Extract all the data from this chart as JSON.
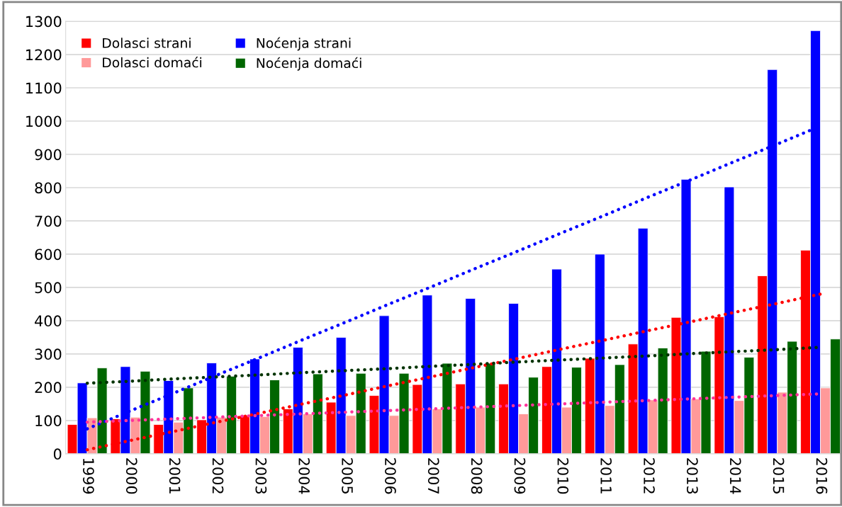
{
  "chart_data": {
    "type": "bar",
    "categories": [
      "1999",
      "2000",
      "2001",
      "2002",
      "2003",
      "2004",
      "2005",
      "2006",
      "2007",
      "2008",
      "2009",
      "2010",
      "2011",
      "2012",
      "2013",
      "2014",
      "2015",
      "2016"
    ],
    "series": [
      {
        "name": "Dolasci strani",
        "color": "#ff0000",
        "values": [
          88,
          105,
          88,
          102,
          115,
          135,
          155,
          175,
          208,
          210,
          210,
          262,
          287,
          330,
          410,
          412,
          535,
          612
        ]
      },
      {
        "name": "Noćenja strani",
        "color": "#0000ff",
        "values": [
          213,
          262,
          220,
          273,
          285,
          320,
          350,
          415,
          477,
          467,
          452,
          555,
          600,
          678,
          825,
          802,
          1155,
          1272
        ]
      },
      {
        "name": "Dolasci domaći",
        "color": "#ff9999",
        "values": [
          108,
          110,
          95,
          110,
          112,
          120,
          115,
          115,
          135,
          140,
          120,
          140,
          145,
          162,
          165,
          160,
          185,
          198
        ]
      },
      {
        "name": "Noćenja domaći",
        "color": "#006600",
        "values": [
          258,
          248,
          198,
          233,
          222,
          240,
          242,
          242,
          272,
          272,
          230,
          260,
          268,
          318,
          308,
          290,
          338,
          345
        ]
      },
      {
        "type": "line",
        "color": "#ff0000",
        "values": [
          12,
          40,
          67,
          95,
          122,
          150,
          177,
          205,
          232,
          260,
          287,
          315,
          342,
          370,
          397,
          425,
          452,
          480
        ],
        "line_style": "dotted"
      },
      {
        "type": "line",
        "color": "#0000ff",
        "values": [
          75,
          129,
          182,
          236,
          289,
          343,
          396,
          450,
          503,
          557,
          610,
          664,
          717,
          771,
          824,
          878,
          931,
          985
        ],
        "line_style": "dotted"
      },
      {
        "type": "line",
        "color": "#ff3399",
        "values": [
          95,
          100,
          105,
          110,
          115,
          120,
          125,
          130,
          135,
          140,
          145,
          150,
          155,
          160,
          165,
          170,
          175,
          180
        ],
        "line_style": "dotted"
      },
      {
        "type": "line",
        "color": "#003300",
        "values": [
          212,
          218,
          225,
          231,
          237,
          244,
          250,
          256,
          263,
          269,
          276,
          282,
          288,
          294,
          301,
          307,
          313,
          320
        ],
        "line_style": "dotted"
      }
    ],
    "ylim": [
      0,
      1300
    ],
    "yticks": [
      0,
      100,
      200,
      300,
      400,
      500,
      600,
      700,
      800,
      900,
      1000,
      1100,
      1200,
      1300
    ],
    "grid": "y",
    "legend": "top left"
  }
}
